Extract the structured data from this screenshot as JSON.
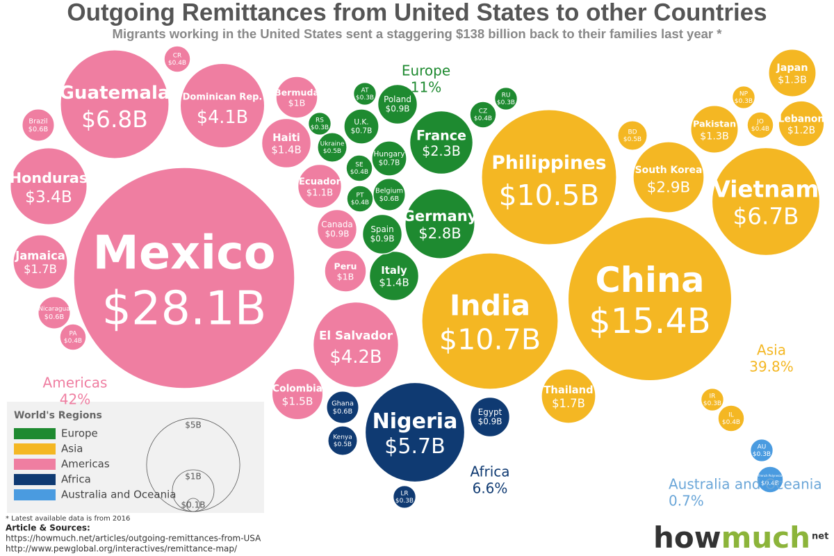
{
  "chart_data": {
    "type": "bubble",
    "title": "Outgoing Remittances from United States to other Countries",
    "subtitle": "Migrants working in the United States sent a staggering $138 billion back to their families last year *",
    "series": [
      {
        "name": "Europe",
        "share": "11%",
        "color": "#1e8a30",
        "categories": [
          "France",
          "Germany",
          "Italy",
          "Spain",
          "Poland",
          "U.K.",
          "AT",
          "RU",
          "CZ",
          "RS",
          "Ukraine",
          "Hungary",
          "SE",
          "PT",
          "Belgium"
        ],
        "values": [
          2.3,
          2.8,
          1.4,
          0.9,
          0.9,
          0.7,
          0.3,
          0.3,
          0.4,
          0.3,
          0.5,
          0.7,
          0.4,
          0.4,
          0.6
        ],
        "value_labels": [
          "$2.3B",
          "$2.8B",
          "$1.4B",
          "$0.9B",
          "$0.9B",
          "$0.7B",
          "$0.3B",
          "$0.3B",
          "$0.4B",
          "$0.3B",
          "$0.5B",
          "$0.7B",
          "$0.4B",
          "$0.4B",
          "$0.6B"
        ]
      },
      {
        "name": "Asia",
        "share": "39.8%",
        "color": "#f4b723",
        "categories": [
          "China",
          "India",
          "Philippines",
          "Vietnam",
          "South Korea",
          "Thailand",
          "Japan",
          "Lebanon",
          "Pakistan",
          "BD",
          "NP",
          "JO",
          "IR",
          "IL"
        ],
        "values": [
          15.4,
          10.7,
          10.5,
          6.7,
          2.9,
          1.7,
          1.3,
          1.2,
          1.3,
          0.5,
          0.3,
          0.4,
          0.3,
          0.4
        ],
        "value_labels": [
          "$15.4B",
          "$10.7B",
          "$10.5B",
          "$6.7B",
          "$2.9B",
          "$1.7B",
          "$1.3B",
          "$1.2B",
          "$1.3B",
          "$0.5B",
          "$0.3B",
          "$0.4B",
          "$0.3B",
          "$0.4B"
        ]
      },
      {
        "name": "Americas",
        "share": "42%",
        "color": "#ef7ea1",
        "categories": [
          "Mexico",
          "Guatemala",
          "Dominican Rep.",
          "Honduras",
          "Jamaica",
          "Brazil",
          "CR",
          "Bermuda",
          "Haiti",
          "Ecuador",
          "Canada",
          "Peru",
          "El Salvador",
          "Colombia",
          "Nicaragua",
          "PA"
        ],
        "values": [
          28.1,
          6.8,
          4.1,
          3.4,
          1.7,
          0.6,
          0.4,
          1,
          1.4,
          1.1,
          0.9,
          1,
          4.2,
          1.5,
          0.6,
          0.4
        ],
        "value_labels": [
          "$28.1B",
          "$6.8B",
          "$4.1B",
          "$3.4B",
          "$1.7B",
          "$0.6B",
          "$0.4B",
          "$1B",
          "$1.4B",
          "$1.1B",
          "$0.9B",
          "$1B",
          "$4.2B",
          "$1.5B",
          "$0.6B",
          "$0.4B"
        ]
      },
      {
        "name": "Africa",
        "share": "6.6%",
        "color": "#0f3a72",
        "categories": [
          "Nigeria",
          "Egypt",
          "Ghana",
          "Kenya",
          "LR"
        ],
        "values": [
          5.7,
          0.9,
          0.6,
          0.5,
          0.3
        ],
        "value_labels": [
          "$5.7B",
          "$0.9B",
          "$0.6B",
          "$0.5B",
          "$0.3B"
        ]
      },
      {
        "name": "Australia and Oceania",
        "share": "0.7%",
        "color": "#4a9be0",
        "categories": [
          "AU",
          "French Polynesia"
        ],
        "values": [
          0.3,
          0.4
        ],
        "value_labels": [
          "$0.3B",
          "$0.4B"
        ]
      }
    ],
    "legend_title": "World's Regions",
    "size_legend": {
      "values": [
        5,
        1,
        0.1
      ],
      "value_labels": [
        "$5B",
        "$1B",
        "$0.1B"
      ]
    },
    "note": "* Latest available data is from 2016",
    "sources_heading": "Article & Sources:",
    "sources": [
      "https://howmuch.net/articles/outgoing-remittances-from-USA",
      "http://www.pewglobal.org/interactives/remittance-map/"
    ],
    "logo": [
      "how",
      "much",
      "net"
    ]
  }
}
